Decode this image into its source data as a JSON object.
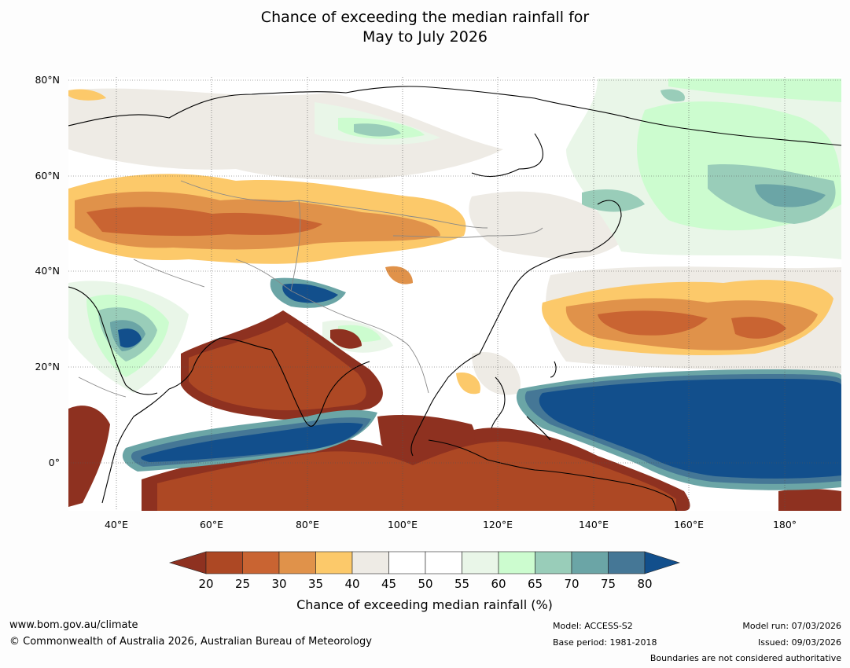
{
  "title": {
    "line1": "Chance of exceeding the median rainfall for",
    "line2": "May to July 2026"
  },
  "map": {
    "lat_labels": [
      "80°N",
      "60°N",
      "40°N",
      "20°N",
      "0°"
    ],
    "lon_labels": [
      "40°E",
      "60°E",
      "80°E",
      "100°E",
      "120°E",
      "140°E",
      "160°E",
      "180°"
    ],
    "lat_range": [
      -10,
      80
    ],
    "lon_range": [
      30,
      192
    ]
  },
  "colorbar": {
    "ticks": [
      "20",
      "25",
      "30",
      "35",
      "40",
      "45",
      "50",
      "55",
      "60",
      "65",
      "70",
      "75",
      "80"
    ],
    "colors": [
      "#8e3120",
      "#ad4824",
      "#c96432",
      "#e0924a",
      "#fcc96a",
      "#eeebe5",
      "#ffffff",
      "#ffffff",
      "#e9f6e8",
      "#ccfccf",
      "#99cdb9",
      "#6ba5a6",
      "#457796",
      "#124f8c"
    ],
    "label": "Chance of exceeding median rainfall (%)"
  },
  "footer": {
    "url": "www.bom.gov.au/climate",
    "copyright": "© Commonwealth of Australia 2026, Australian Bureau of Meteorology",
    "model": "Model: ACCESS-S2",
    "base_period": "Base period: 1981-2018",
    "model_run": "Model run: 07/03/2026",
    "issued": "Issued: 09/03/2026",
    "disclaimer": "Boundaries are not considered authoritative"
  }
}
